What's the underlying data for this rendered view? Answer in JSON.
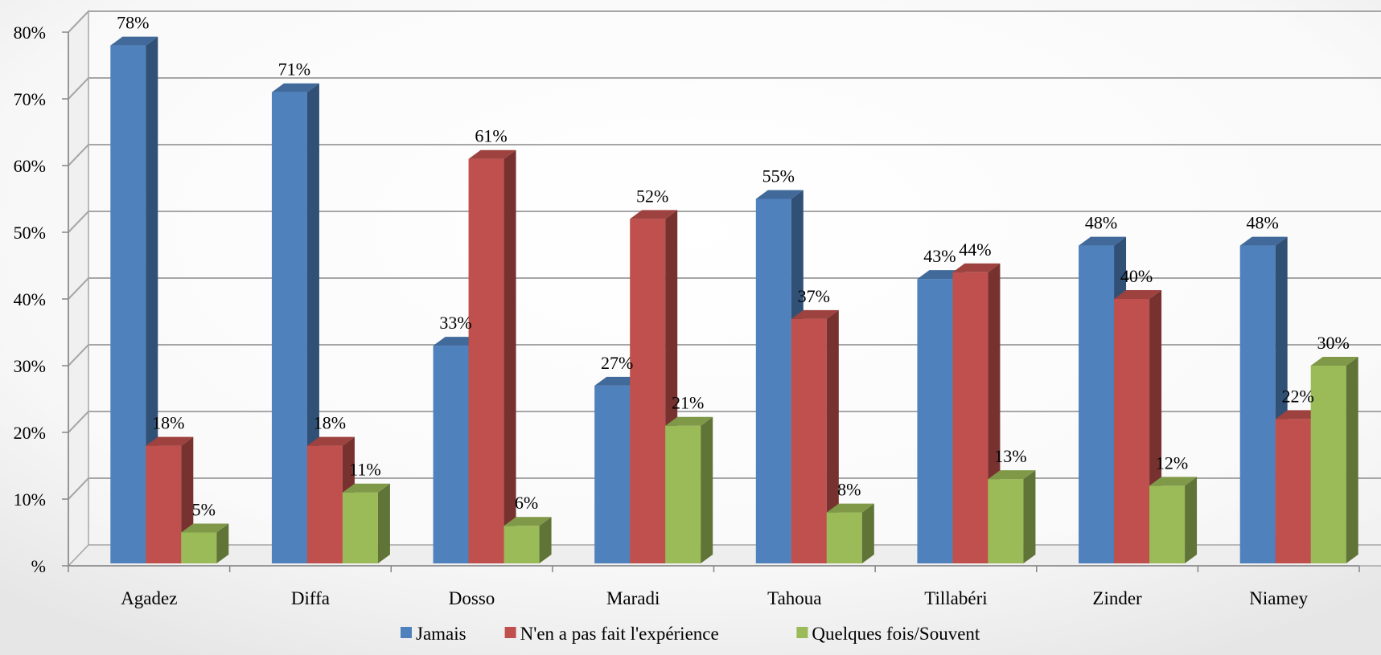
{
  "chart_data": {
    "type": "bar",
    "categories": [
      "Agadez",
      "Diffa",
      "Dosso",
      "Maradi",
      "Tahoua",
      "Tillabéri",
      "Zinder",
      "Niamey"
    ],
    "series": [
      {
        "name": "Jamais",
        "color": "#4F81BD",
        "values": [
          78,
          71,
          33,
          27,
          55,
          43,
          48,
          48
        ]
      },
      {
        "name": "N'en a pas fait l'expérience",
        "color": "#C0504D",
        "values": [
          18,
          18,
          61,
          52,
          37,
          44,
          40,
          22
        ]
      },
      {
        "name": "Quelques fois/Souvent",
        "color": "#9BBB59",
        "values": [
          5,
          11,
          6,
          21,
          8,
          13,
          12,
          30
        ]
      }
    ],
    "y_ticks": [
      "%",
      "10%",
      "20%",
      "30%",
      "40%",
      "50%",
      "60%",
      "70%",
      "80%"
    ],
    "ylim": [
      0,
      80
    ],
    "value_suffix": "%",
    "grid": true,
    "legend": "bottom",
    "style": "3d-clustered-column"
  }
}
